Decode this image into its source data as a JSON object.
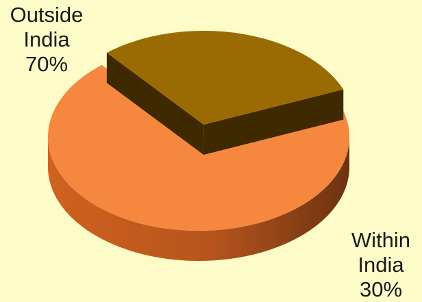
{
  "chart_data": {
    "type": "pie",
    "style": "3d-exploded",
    "slices": [
      {
        "label_lines": [
          "Outside",
          "India",
          "70%"
        ],
        "value": 70,
        "color": "#f5873f",
        "side_color": "#b5541c",
        "exploded": false
      },
      {
        "label_lines": [
          "Within",
          "India",
          "30%"
        ],
        "value": 30,
        "color": "#9b6b03",
        "side_color": "#4e3300",
        "exploded": true
      }
    ],
    "background": "#fdfcc8",
    "legend": "none"
  }
}
